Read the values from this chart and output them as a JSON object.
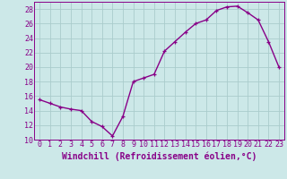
{
  "x": [
    0,
    1,
    2,
    3,
    4,
    5,
    6,
    7,
    8,
    9,
    10,
    11,
    12,
    13,
    14,
    15,
    16,
    17,
    18,
    19,
    20,
    21,
    22,
    23
  ],
  "y": [
    15.5,
    15.0,
    14.5,
    14.2,
    14.0,
    12.5,
    11.8,
    10.5,
    13.2,
    18.0,
    18.5,
    19.0,
    22.2,
    23.5,
    24.8,
    26.0,
    26.5,
    27.8,
    28.3,
    28.4,
    27.5,
    26.5,
    23.5,
    20.0
  ],
  "xlabel": "Windchill (Refroidissement éolien,°C)",
  "ylim": [
    10,
    29
  ],
  "xlim": [
    -0.5,
    23.5
  ],
  "yticks": [
    10,
    12,
    14,
    16,
    18,
    20,
    22,
    24,
    26,
    28
  ],
  "xticks": [
    0,
    1,
    2,
    3,
    4,
    5,
    6,
    7,
    8,
    9,
    10,
    11,
    12,
    13,
    14,
    15,
    16,
    17,
    18,
    19,
    20,
    21,
    22,
    23
  ],
  "line_color": "#880088",
  "marker": "+",
  "marker_size": 3.5,
  "bg_color": "#cce8e8",
  "grid_color": "#aacccc",
  "xlabel_fontsize": 7,
  "tick_fontsize": 6,
  "line_width": 1.0
}
